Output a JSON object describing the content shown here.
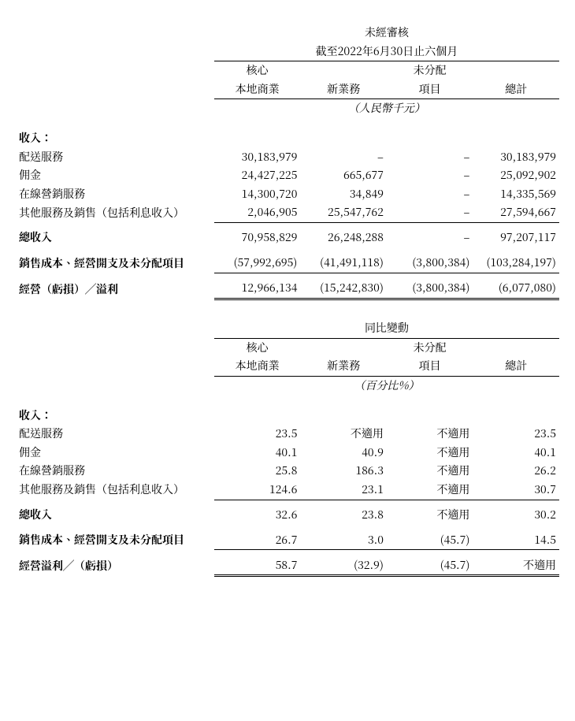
{
  "table1": {
    "super1": "未經審核",
    "super2": "截至2022年6月30日止六個月",
    "headers": {
      "c1a": "核心",
      "c1b": "本地商業",
      "c2": "新業務",
      "c3a": "未分配",
      "c3b": "項目",
      "c4": "總計"
    },
    "unit": "（人民幣千元）",
    "revenue_label": "收入：",
    "rows": [
      {
        "label": "配送服務",
        "c1": "30,183,979",
        "c2": "–",
        "c3": "–",
        "c4": "30,183,979"
      },
      {
        "label": "佣金",
        "c1": "24,427,225",
        "c2": "665,677",
        "c3": "–",
        "c4": "25,092,902"
      },
      {
        "label": "在線營銷服務",
        "c1": "14,300,720",
        "c2": "34,849",
        "c3": "–",
        "c4": "14,335,569"
      },
      {
        "label": "其他服務及銷售（包括利息收入）",
        "c1": "2,046,905",
        "c2": "25,547,762",
        "c3": "–",
        "c4": "27,594,667"
      }
    ],
    "total_rev": {
      "label": "總收入",
      "c1": "70,958,829",
      "c2": "26,248,288",
      "c3": "–",
      "c4": "97,207,117"
    },
    "cost": {
      "label": "銷售成本、經營開支及未分配項目",
      "c1": "(57,992,695)",
      "c2": "(41,491,118)",
      "c3": "(3,800,384)",
      "c4": "(103,284,197)"
    },
    "op": {
      "label": "經營（虧損）╱溢利",
      "c1": "12,966,134",
      "c2": "(15,242,830)",
      "c3": "(3,800,384)",
      "c4": "(6,077,080)"
    }
  },
  "table2": {
    "super": "同比變動",
    "headers": {
      "c1a": "核心",
      "c1b": "本地商業",
      "c2": "新業務",
      "c3a": "未分配",
      "c3b": "項目",
      "c4": "總計"
    },
    "unit": "（百分比%）",
    "revenue_label": "收入：",
    "rows": [
      {
        "label": "配送服務",
        "c1": "23.5",
        "c2": "不適用",
        "c3": "不適用",
        "c4": "23.5"
      },
      {
        "label": "佣金",
        "c1": "40.1",
        "c2": "40.9",
        "c3": "不適用",
        "c4": "40.1"
      },
      {
        "label": "在線營銷服務",
        "c1": "25.8",
        "c2": "186.3",
        "c3": "不適用",
        "c4": "26.2"
      },
      {
        "label": "其他服務及銷售（包括利息收入）",
        "c1": "124.6",
        "c2": "23.1",
        "c3": "不適用",
        "c4": "30.7"
      }
    ],
    "total_rev": {
      "label": "總收入",
      "c1": "32.6",
      "c2": "23.8",
      "c3": "不適用",
      "c4": "30.2"
    },
    "cost": {
      "label": "銷售成本、經營開支及未分配項目",
      "c1": "26.7",
      "c2": "3.0",
      "c3": "(45.7)",
      "c4": "14.5"
    },
    "op": {
      "label": "經營溢利╱（虧損）",
      "c1": "58.7",
      "c2": "(32.9)",
      "c3": "(45.7)",
      "c4": "不適用"
    }
  }
}
